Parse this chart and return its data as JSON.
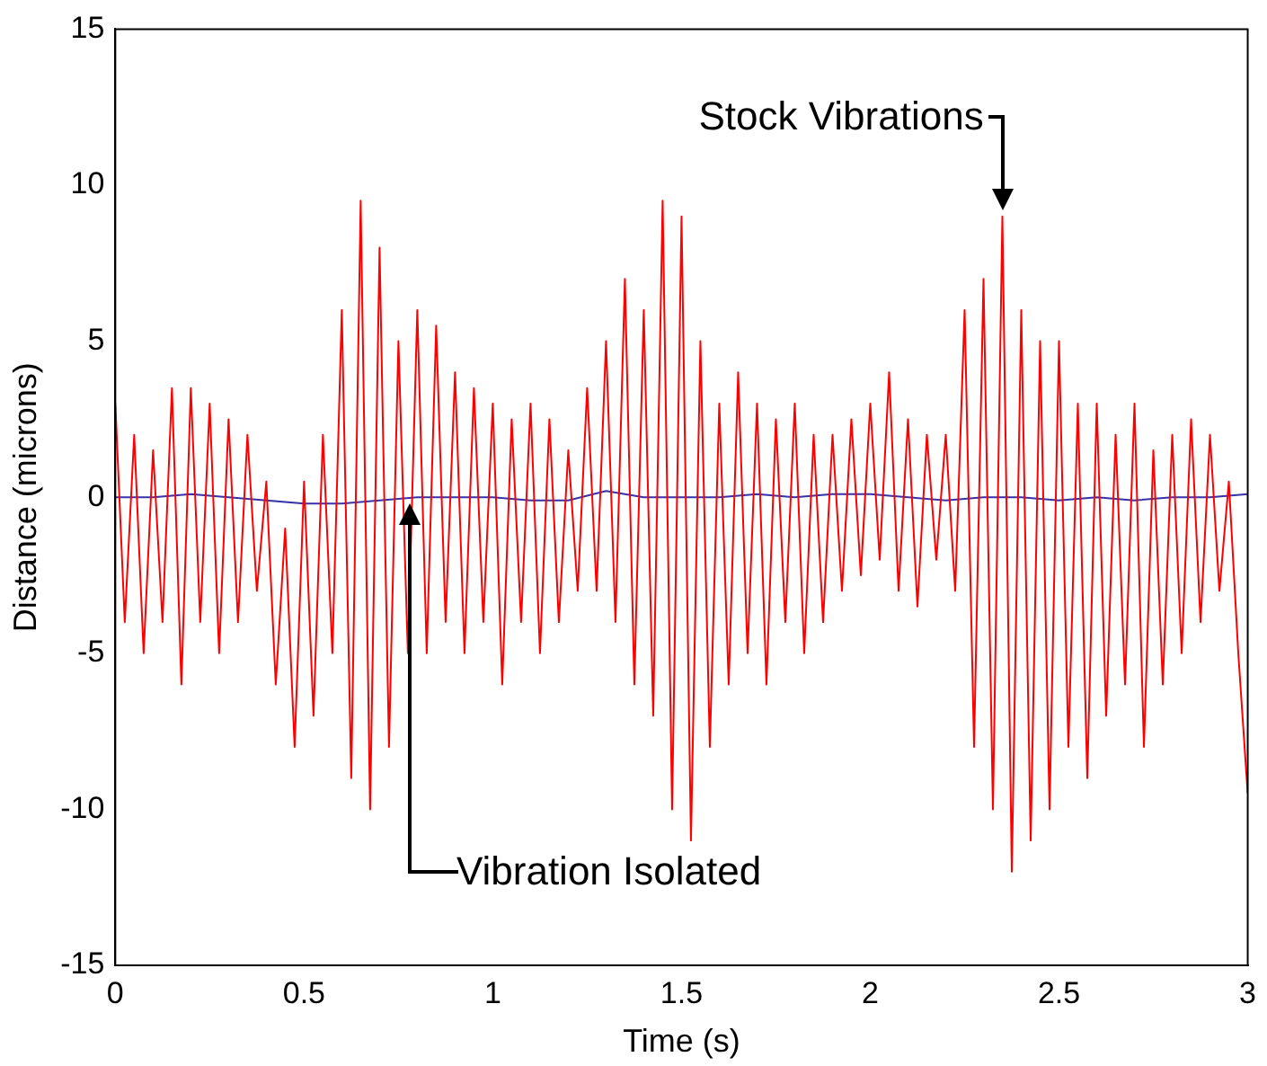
{
  "chart_data": {
    "type": "line",
    "xlabel": "Time (s)",
    "ylabel": "Distance (microns)",
    "xlim": [
      0,
      3
    ],
    "xticks": [
      0,
      0.5,
      1,
      1.5,
      2,
      2.5,
      3
    ],
    "ylim": [
      -15,
      15
    ],
    "yticks": [
      -15,
      -10,
      -5,
      0,
      5,
      10,
      15
    ],
    "grid": false,
    "legend": false,
    "marker": "none",
    "line_style": "solid",
    "annotations": [
      {
        "text": "Stock Vibrations",
        "x": 2.35,
        "y": 9
      },
      "Vibration Isolated"
    ],
    "series": [
      {
        "color": "#ff0000",
        "x": [
          0,
          0.025,
          0.05,
          0.075,
          0.1,
          0.125,
          0.15,
          0.175,
          0.2,
          0.225,
          0.25,
          0.275,
          0.3,
          0.325,
          0.35,
          0.375,
          0.4,
          0.425,
          0.45,
          0.475,
          0.5,
          0.525,
          0.55,
          0.575,
          0.6,
          0.625,
          0.65,
          0.675,
          0.7,
          0.725,
          0.75,
          0.775,
          0.8,
          0.825,
          0.85,
          0.875,
          0.9,
          0.925,
          0.95,
          0.975,
          1,
          1.025,
          1.05,
          1.075,
          1.1,
          1.125,
          1.15,
          1.175,
          1.2,
          1.225,
          1.25,
          1.275,
          1.3,
          1.325,
          1.35,
          1.375,
          1.4,
          1.425,
          1.45,
          1.475,
          1.5,
          1.525,
          1.55,
          1.575,
          1.6,
          1.625,
          1.65,
          1.675,
          1.7,
          1.725,
          1.75,
          1.775,
          1.8,
          1.825,
          1.85,
          1.875,
          1.9,
          1.925,
          1.95,
          1.975,
          2,
          2.025,
          2.05,
          2.075,
          2.1,
          2.125,
          2.15,
          2.175,
          2.2,
          2.225,
          2.25,
          2.275,
          2.3,
          2.325,
          2.35,
          2.375,
          2.4,
          2.425,
          2.45,
          2.475,
          2.5,
          2.525,
          2.55,
          2.575,
          2.6,
          2.625,
          2.65,
          2.675,
          2.7,
          2.725,
          2.75,
          2.775,
          2.8,
          2.825,
          2.85,
          2.875,
          2.9,
          2.925,
          2.95,
          2.975,
          3
        ],
        "values": [
          3,
          -4,
          2,
          -5,
          1.5,
          -4,
          3.5,
          -6,
          3.5,
          -4,
          3,
          -5,
          2.5,
          -4,
          2,
          -3,
          0.5,
          -6,
          -1,
          -8,
          0.5,
          -7,
          2,
          -5,
          6,
          -9,
          9.5,
          -10,
          8,
          -8,
          5,
          -5,
          6,
          -5,
          5.5,
          -4,
          4,
          -5,
          3.5,
          -4,
          3,
          -6,
          2.5,
          -4,
          3,
          -5,
          2.5,
          -4,
          1.5,
          -3,
          3.5,
          -3,
          5,
          -4,
          7,
          -6,
          6,
          -7,
          9.5,
          -10,
          9,
          -11,
          5,
          -8,
          3,
          -6,
          4,
          -5,
          3,
          -6,
          2.5,
          -4,
          3,
          -5,
          2,
          -4,
          2,
          -3,
          2.5,
          -2.5,
          3,
          -2,
          4,
          -3,
          2.5,
          -3.5,
          2,
          -2,
          2,
          -3,
          6,
          -8,
          7,
          -10,
          9,
          -12,
          6,
          -11,
          5,
          -10,
          5,
          -8,
          3,
          -9,
          3,
          -7,
          2,
          -6,
          3,
          -8,
          1.5,
          -6,
          2,
          -5,
          2.5,
          -4,
          2,
          -3,
          0.5,
          -5,
          -9.5
        ]
      },
      {
        "color": "#3333aa",
        "x": [
          0,
          0.1,
          0.2,
          0.3,
          0.4,
          0.5,
          0.6,
          0.7,
          0.8,
          0.9,
          1,
          1.1,
          1.2,
          1.3,
          1.4,
          1.5,
          1.6,
          1.7,
          1.8,
          1.9,
          2,
          2.1,
          2.2,
          2.3,
          2.4,
          2.5,
          2.6,
          2.7,
          2.8,
          2.9,
          3
        ],
        "values": [
          0,
          0,
          0.1,
          0,
          -0.1,
          -0.2,
          -0.2,
          -0.1,
          0,
          0,
          0,
          -0.1,
          -0.1,
          0.2,
          0,
          0,
          0,
          0.1,
          0,
          0.1,
          0.1,
          0,
          -0.1,
          0,
          0,
          -0.1,
          0,
          -0.1,
          0,
          0,
          0.1
        ]
      }
    ]
  }
}
